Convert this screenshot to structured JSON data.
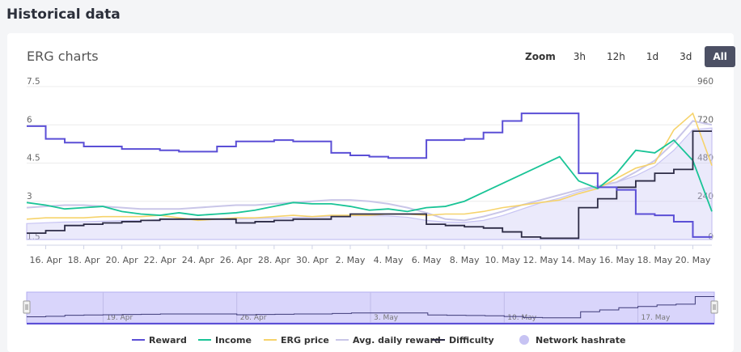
{
  "page_title": "Historical data",
  "chart_title": "ERG charts",
  "zoom": {
    "label": "Zoom",
    "buttons": [
      "3h",
      "12h",
      "1d",
      "3d",
      "All"
    ],
    "selected": "All"
  },
  "colors": {
    "reward": "#5b4fd6",
    "income": "#19c496",
    "erg_price": "#f6d36b",
    "avg_daily_reward": "#c9c6e8",
    "difficulty": "#2c2b45",
    "network_hashrate": "#c7c3f3",
    "navigator_fill": "#d9d5fb"
  },
  "chart_data": {
    "type": "line",
    "x_dates": [
      "2021-04-15",
      "2021-04-16",
      "2021-04-17",
      "2021-04-18",
      "2021-04-19",
      "2021-04-20",
      "2021-04-21",
      "2021-04-22",
      "2021-04-23",
      "2021-04-24",
      "2021-04-25",
      "2021-04-26",
      "2021-04-27",
      "2021-04-28",
      "2021-04-29",
      "2021-04-30",
      "2021-05-01",
      "2021-05-02",
      "2021-05-03",
      "2021-05-04",
      "2021-05-05",
      "2021-05-06",
      "2021-05-07",
      "2021-05-08",
      "2021-05-09",
      "2021-05-10",
      "2021-05-11",
      "2021-05-12",
      "2021-05-13",
      "2021-05-14",
      "2021-05-15",
      "2021-05-16",
      "2021-05-17",
      "2021-05-18",
      "2021-05-19",
      "2021-05-20",
      "2021-05-21"
    ],
    "x_tick_labels": [
      "16. Apr",
      "18. Apr",
      "20. Apr",
      "22. Apr",
      "24. Apr",
      "26. Apr",
      "28. Apr",
      "30. Apr",
      "2. May",
      "4. May",
      "6. May",
      "8. May",
      "10. May",
      "12. May",
      "14. May",
      "16. May",
      "18. May",
      "20. May"
    ],
    "left_axis": {
      "ticks": [
        "1.5",
        "3",
        "4.5",
        "6",
        "7.5"
      ],
      "range": [
        1.5,
        7.5
      ]
    },
    "right_axis": {
      "ticks": [
        "0",
        "240",
        "480",
        "720",
        "960"
      ],
      "range": [
        0,
        960
      ]
    },
    "navigator_ticks": [
      "19. Apr",
      "26. Apr",
      "3. May",
      "10. May",
      "17. May"
    ],
    "series": [
      {
        "name": "Reward",
        "axis": "left",
        "values": [
          5.95,
          5.45,
          5.3,
          5.15,
          5.15,
          5.05,
          5.05,
          5.0,
          4.95,
          4.95,
          5.15,
          5.35,
          5.35,
          5.4,
          5.35,
          5.35,
          4.9,
          4.8,
          4.75,
          4.7,
          4.7,
          5.4,
          5.4,
          5.45,
          5.7,
          6.15,
          6.45,
          6.45,
          6.45,
          4.1,
          3.55,
          3.45,
          2.5,
          2.45,
          2.2,
          1.6,
          1.6
        ]
      },
      {
        "name": "Income",
        "axis": "left",
        "values": [
          2.95,
          2.85,
          2.7,
          2.75,
          2.8,
          2.6,
          2.5,
          2.45,
          2.55,
          2.45,
          2.5,
          2.55,
          2.65,
          2.8,
          2.95,
          2.9,
          2.9,
          2.8,
          2.65,
          2.7,
          2.6,
          2.75,
          2.8,
          3.0,
          3.35,
          3.7,
          4.05,
          4.4,
          4.75,
          3.8,
          3.5,
          4.1,
          5.0,
          4.9,
          5.4,
          4.6,
          2.6
        ]
      },
      {
        "name": "ERG price",
        "axis": "left",
        "values": [
          2.3,
          2.35,
          2.35,
          2.35,
          2.4,
          2.4,
          2.4,
          2.45,
          2.35,
          2.25,
          2.3,
          2.35,
          2.35,
          2.4,
          2.45,
          2.4,
          2.45,
          2.45,
          2.45,
          2.5,
          2.5,
          2.45,
          2.5,
          2.5,
          2.6,
          2.75,
          2.85,
          2.95,
          3.05,
          3.3,
          3.5,
          3.9,
          4.3,
          4.5,
          5.8,
          6.45,
          4.4
        ]
      },
      {
        "name": "Avg. daily reward",
        "axis": "left",
        "values": [
          2.75,
          2.8,
          2.85,
          2.85,
          2.8,
          2.75,
          2.7,
          2.7,
          2.7,
          2.75,
          2.8,
          2.85,
          2.85,
          2.9,
          2.95,
          3.0,
          3.05,
          3.05,
          3.0,
          2.9,
          2.75,
          2.55,
          2.3,
          2.25,
          2.4,
          2.6,
          2.85,
          3.05,
          3.25,
          3.45,
          3.6,
          3.75,
          4.15,
          4.6,
          5.3,
          6.15,
          6.0
        ]
      },
      {
        "name": "Difficulty",
        "axis": "left",
        "values": [
          1.75,
          1.85,
          2.05,
          2.1,
          2.15,
          2.2,
          2.25,
          2.3,
          2.3,
          2.3,
          2.3,
          2.15,
          2.2,
          2.25,
          2.3,
          2.3,
          2.4,
          2.5,
          2.5,
          2.5,
          2.5,
          2.1,
          2.05,
          2.0,
          1.95,
          1.8,
          1.6,
          1.55,
          1.55,
          2.75,
          3.1,
          3.55,
          3.8,
          4.1,
          4.25,
          5.75,
          5.75
        ]
      },
      {
        "name": "Network hashrate",
        "axis": "right",
        "values": [
          100,
          105,
          110,
          112,
          115,
          118,
          120,
          125,
          125,
          128,
          130,
          128,
          132,
          135,
          138,
          140,
          145,
          150,
          150,
          148,
          140,
          120,
          110,
          108,
          120,
          150,
          190,
          230,
          260,
          300,
          330,
          360,
          400,
          460,
          560,
          690,
          700
        ]
      }
    ]
  }
}
